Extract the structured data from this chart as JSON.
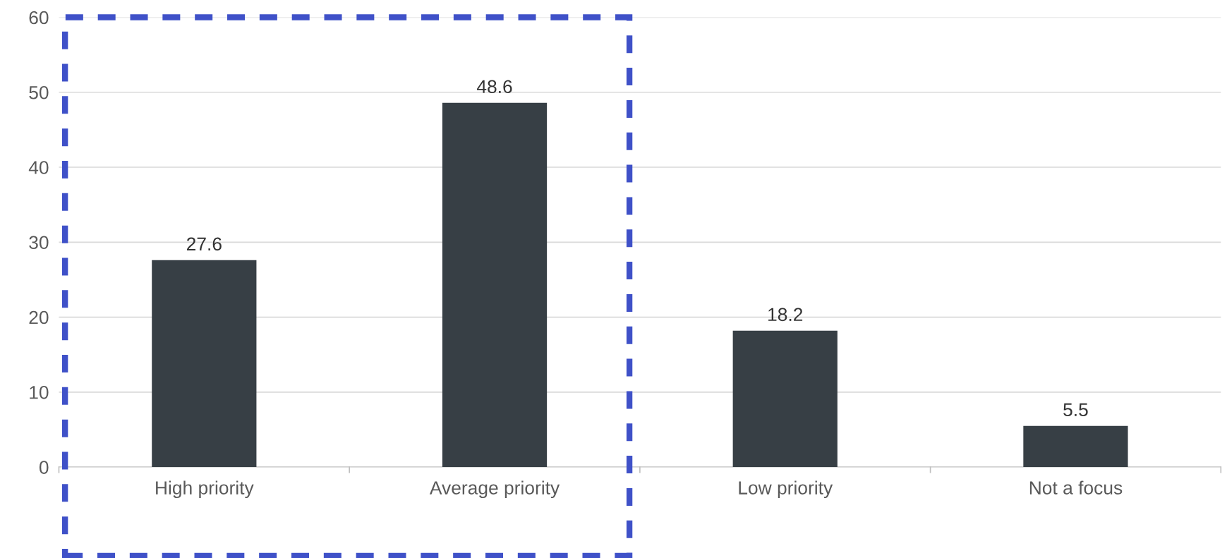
{
  "chart_data": {
    "type": "bar",
    "categories": [
      "High priority",
      "Average priority",
      "Low priority",
      "Not a focus"
    ],
    "values": [
      27.6,
      48.6,
      18.2,
      5.5
    ],
    "color": "#373f45",
    "ylim": [
      0,
      60
    ],
    "yticks": [
      0,
      10,
      20,
      30,
      40,
      50,
      60
    ],
    "grid": "y",
    "data_labels": true
  }
}
